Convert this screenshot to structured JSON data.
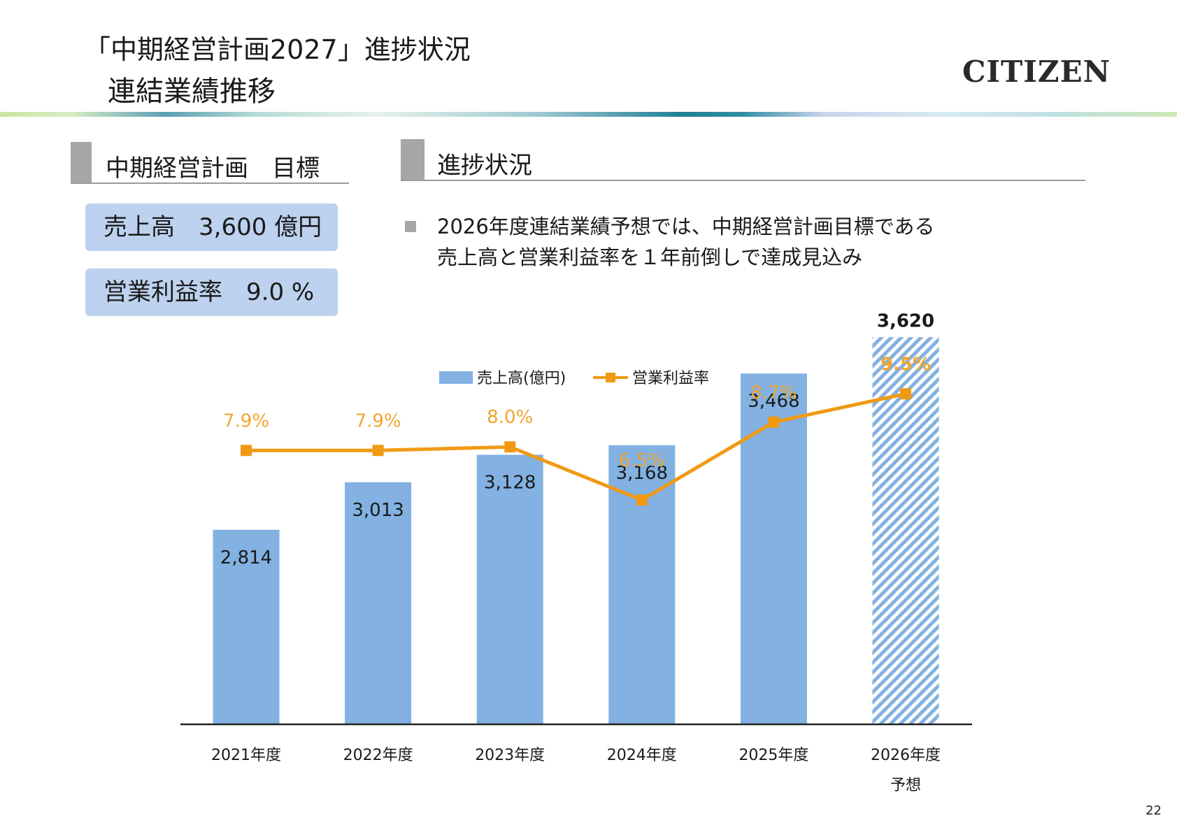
{
  "header": {
    "title_line1": "「中期経営計画2027」進捗状況",
    "title_line2": "連結業績推移",
    "logo": "CITIZEN"
  },
  "targets": {
    "heading": "中期経営計画　目標",
    "sales": "売上高　3,600 億円",
    "margin": "営業利益率　9.0 %"
  },
  "progress": {
    "heading": "進捗状況",
    "bullet_line1": "2026年度連結業績予想では、中期経営計画目標である",
    "bullet_line2": "売上高と営業利益率を１年前倒しで達成見込み"
  },
  "page_number": "22",
  "colors": {
    "bar": "#82b1e2",
    "line": "#f09a14",
    "line_label": "#f0a530",
    "forecast_stripe": "#82b1e2"
  },
  "chart_data": {
    "type": "bar",
    "categories": [
      "2021年度",
      "2022年度",
      "2023年度",
      "2024年度",
      "2025年度",
      "2026年度"
    ],
    "category_sublabels": [
      "",
      "",
      "",
      "",
      "",
      "予想"
    ],
    "legend": [
      "売上高(億円)",
      "営業利益率"
    ],
    "legend_position": "top-center",
    "series": [
      {
        "name": "売上高(億円)",
        "type": "bar",
        "values": [
          2814,
          3013,
          3128,
          3168,
          3468,
          3620
        ],
        "labels": [
          "2,814",
          "3,013",
          "3,128",
          "3,168",
          "3,468",
          "3,620"
        ],
        "forecast_index": 5
      },
      {
        "name": "営業利益率",
        "type": "line",
        "values": [
          7.9,
          7.9,
          8.0,
          6.5,
          8.7,
          9.5
        ],
        "labels": [
          "7.9%",
          "7.9%",
          "8.0%",
          "6.5%",
          "8.7%",
          "9.5%"
        ]
      }
    ],
    "grid": false
  }
}
